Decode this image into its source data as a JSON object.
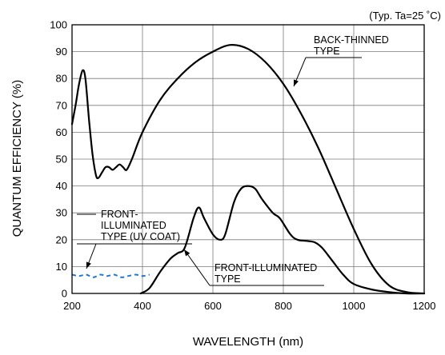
{
  "chart_data": {
    "type": "line",
    "title": "",
    "condition_note": "(Typ. Ta=25 ˚C)",
    "xlabel": "WAVELENGTH (nm)",
    "ylabel": "QUANTUM EFFICIENCY (%)",
    "xlim": [
      200,
      1200
    ],
    "ylim": [
      0,
      100
    ],
    "xticks": [
      200,
      400,
      600,
      800,
      1000,
      1200
    ],
    "yticks": [
      0,
      10,
      20,
      30,
      40,
      50,
      60,
      70,
      80,
      90,
      100
    ],
    "grid": true,
    "series": [
      {
        "name": "BACK-THINNED TYPE",
        "label_lines": [
          "BACK-THINNED",
          "TYPE"
        ],
        "style": "solid",
        "color": "#000000",
        "points": [
          [
            200,
            63
          ],
          [
            210,
            70
          ],
          [
            220,
            78
          ],
          [
            230,
            83
          ],
          [
            238,
            80
          ],
          [
            248,
            65
          ],
          [
            258,
            52
          ],
          [
            268,
            44
          ],
          [
            275,
            43
          ],
          [
            285,
            45
          ],
          [
            295,
            47
          ],
          [
            305,
            47
          ],
          [
            315,
            46
          ],
          [
            325,
            47
          ],
          [
            335,
            48
          ],
          [
            345,
            47
          ],
          [
            355,
            46
          ],
          [
            370,
            50
          ],
          [
            400,
            60
          ],
          [
            450,
            72
          ],
          [
            500,
            80
          ],
          [
            550,
            86
          ],
          [
            600,
            90
          ],
          [
            650,
            92.5
          ],
          [
            700,
            91
          ],
          [
            750,
            86
          ],
          [
            800,
            78
          ],
          [
            850,
            67
          ],
          [
            900,
            54
          ],
          [
            950,
            39
          ],
          [
            1000,
            24
          ],
          [
            1050,
            11
          ],
          [
            1100,
            3
          ],
          [
            1150,
            0.5
          ],
          [
            1200,
            0
          ]
        ]
      },
      {
        "name": "FRONT-ILLUMINATED TYPE",
        "label_lines": [
          "FRONT-ILLUMINATED",
          "TYPE"
        ],
        "style": "solid",
        "color": "#000000",
        "points": [
          [
            395,
            0
          ],
          [
            420,
            2
          ],
          [
            450,
            8
          ],
          [
            480,
            13
          ],
          [
            500,
            15
          ],
          [
            520,
            17
          ],
          [
            545,
            28
          ],
          [
            560,
            32
          ],
          [
            575,
            28
          ],
          [
            600,
            22
          ],
          [
            620,
            20
          ],
          [
            635,
            22
          ],
          [
            660,
            34
          ],
          [
            680,
            39
          ],
          [
            700,
            40
          ],
          [
            720,
            39
          ],
          [
            740,
            35
          ],
          [
            770,
            30
          ],
          [
            790,
            28
          ],
          [
            820,
            22
          ],
          [
            840,
            20
          ],
          [
            870,
            19.5
          ],
          [
            890,
            19
          ],
          [
            910,
            17
          ],
          [
            940,
            12
          ],
          [
            970,
            7
          ],
          [
            1000,
            3.5
          ],
          [
            1050,
            1.5
          ],
          [
            1100,
            0.5
          ],
          [
            1150,
            0
          ],
          [
            1200,
            0
          ]
        ]
      },
      {
        "name": "FRONT-ILLUMINATED TYPE (UV COAT)",
        "label_lines": [
          "FRONT-",
          "ILLUMINATED",
          "TYPE (UV COAT)"
        ],
        "style": "dashed",
        "color": "#1f77d2",
        "points": [
          [
            200,
            7
          ],
          [
            220,
            6.5
          ],
          [
            240,
            7
          ],
          [
            260,
            6
          ],
          [
            280,
            7
          ],
          [
            300,
            6.5
          ],
          [
            320,
            7
          ],
          [
            340,
            6
          ],
          [
            360,
            6.5
          ],
          [
            380,
            7
          ],
          [
            400,
            6.5
          ],
          [
            420,
            7
          ]
        ]
      }
    ]
  }
}
